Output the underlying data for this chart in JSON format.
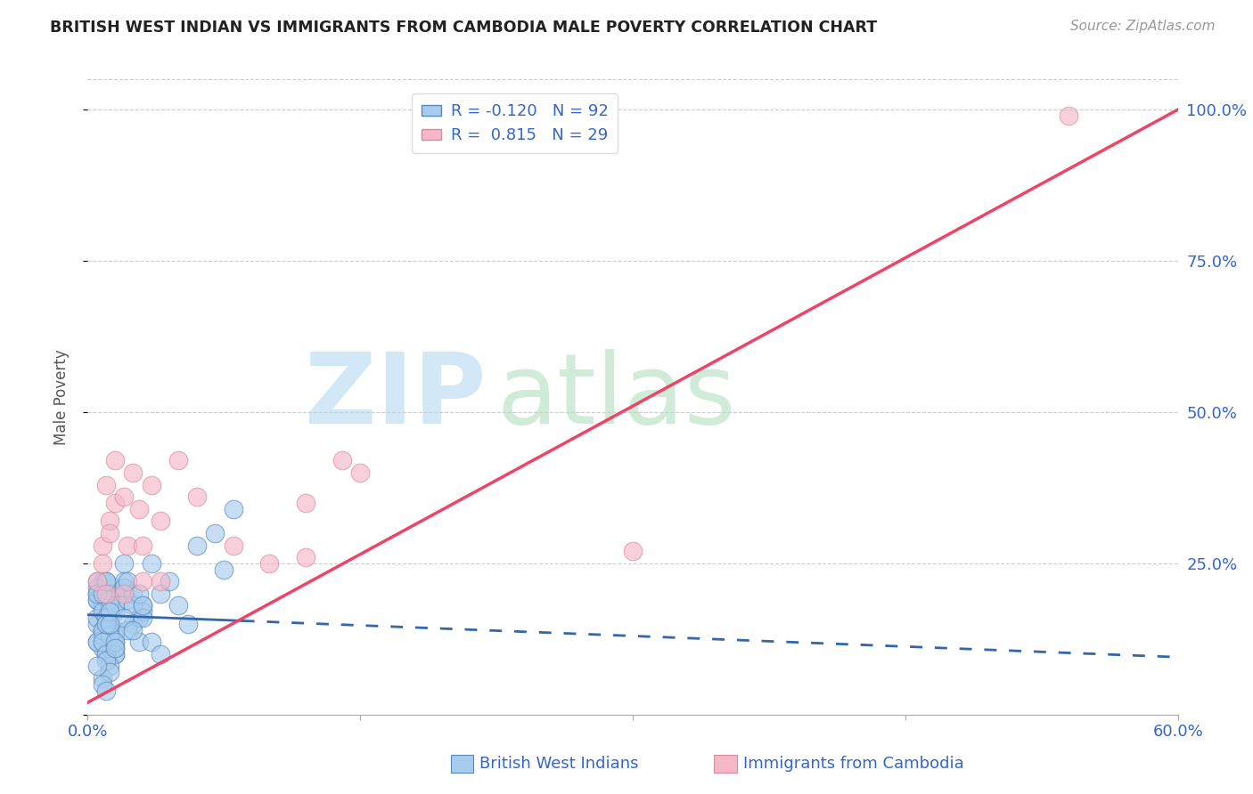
{
  "title": "BRITISH WEST INDIAN VS IMMIGRANTS FROM CAMBODIA MALE POVERTY CORRELATION CHART",
  "source": "Source: ZipAtlas.com",
  "ylabel": "Male Poverty",
  "ytick_values": [
    0.0,
    0.25,
    0.5,
    0.75,
    1.0
  ],
  "ytick_labels": [
    "",
    "25.0%",
    "50.0%",
    "75.0%",
    "100.0%"
  ],
  "xtick_values": [
    0.0,
    0.15,
    0.3,
    0.45,
    0.6
  ],
  "xtick_labels": [
    "0.0%",
    "",
    "",
    "",
    "60.0%"
  ],
  "xlim": [
    0.0,
    0.6
  ],
  "ylim": [
    0.0,
    1.05
  ],
  "legend_r1": "R = -0.120",
  "legend_n1": "N = 92",
  "legend_r2": "R =  0.815",
  "legend_n2": "N = 29",
  "color_blue_fill": "#a8ccee",
  "color_blue_edge": "#5588bb",
  "color_pink_fill": "#f5b8c8",
  "color_pink_edge": "#dd8899",
  "color_blue_line": "#3366aa",
  "color_pink_line": "#ee4466",
  "blue_scatter_x": [
    0.005,
    0.008,
    0.01,
    0.012,
    0.015,
    0.005,
    0.008,
    0.01,
    0.012,
    0.015,
    0.005,
    0.008,
    0.01,
    0.012,
    0.015,
    0.005,
    0.008,
    0.01,
    0.012,
    0.015,
    0.005,
    0.008,
    0.01,
    0.012,
    0.015,
    0.005,
    0.008,
    0.01,
    0.012,
    0.015,
    0.005,
    0.008,
    0.01,
    0.012,
    0.015,
    0.005,
    0.008,
    0.01,
    0.012,
    0.015,
    0.005,
    0.008,
    0.01,
    0.012,
    0.015,
    0.005,
    0.008,
    0.01,
    0.012,
    0.015,
    0.02,
    0.022,
    0.025,
    0.028,
    0.03,
    0.02,
    0.022,
    0.025,
    0.028,
    0.03,
    0.02,
    0.022,
    0.025,
    0.028,
    0.03,
    0.035,
    0.04,
    0.045,
    0.05,
    0.055,
    0.06,
    0.07,
    0.075,
    0.08,
    0.01,
    0.012,
    0.015,
    0.008,
    0.01,
    0.012,
    0.015,
    0.008,
    0.01,
    0.02,
    0.025,
    0.03,
    0.035,
    0.04,
    0.008,
    0.01,
    0.012,
    0.005
  ],
  "blue_scatter_y": [
    0.15,
    0.18,
    0.14,
    0.16,
    0.12,
    0.2,
    0.22,
    0.1,
    0.17,
    0.13,
    0.19,
    0.11,
    0.16,
    0.14,
    0.21,
    0.12,
    0.18,
    0.15,
    0.13,
    0.2,
    0.16,
    0.14,
    0.22,
    0.11,
    0.17,
    0.19,
    0.12,
    0.15,
    0.18,
    0.1,
    0.21,
    0.13,
    0.16,
    0.2,
    0.14,
    0.12,
    0.17,
    0.15,
    0.19,
    0.11,
    0.22,
    0.14,
    0.16,
    0.13,
    0.18,
    0.2,
    0.12,
    0.15,
    0.17,
    0.1,
    0.22,
    0.19,
    0.15,
    0.16,
    0.18,
    0.21,
    0.14,
    0.2,
    0.12,
    0.17,
    0.25,
    0.22,
    0.18,
    0.2,
    0.16,
    0.25,
    0.2,
    0.22,
    0.18,
    0.15,
    0.28,
    0.3,
    0.24,
    0.34,
    0.1,
    0.08,
    0.12,
    0.06,
    0.09,
    0.07,
    0.11,
    0.05,
    0.04,
    0.16,
    0.14,
    0.18,
    0.12,
    0.1,
    0.2,
    0.22,
    0.15,
    0.08
  ],
  "pink_scatter_x": [
    0.005,
    0.008,
    0.01,
    0.012,
    0.015,
    0.008,
    0.01,
    0.012,
    0.015,
    0.02,
    0.022,
    0.025,
    0.028,
    0.03,
    0.035,
    0.04,
    0.05,
    0.06,
    0.08,
    0.1,
    0.12,
    0.14,
    0.15,
    0.02,
    0.03,
    0.04,
    0.3,
    0.54,
    0.12
  ],
  "pink_scatter_y": [
    0.22,
    0.28,
    0.2,
    0.32,
    0.35,
    0.25,
    0.38,
    0.3,
    0.42,
    0.36,
    0.28,
    0.4,
    0.34,
    0.22,
    0.38,
    0.32,
    0.42,
    0.36,
    0.28,
    0.25,
    0.35,
    0.42,
    0.4,
    0.2,
    0.28,
    0.22,
    0.27,
    0.99,
    0.26
  ],
  "blue_line_x0": 0.0,
  "blue_line_x1": 0.6,
  "blue_line_y0": 0.165,
  "blue_line_y1": 0.095,
  "blue_line_solid_x1": 0.085,
  "pink_line_x0": 0.0,
  "pink_line_x1": 0.6,
  "pink_line_y0": 0.02,
  "pink_line_y1": 1.0
}
